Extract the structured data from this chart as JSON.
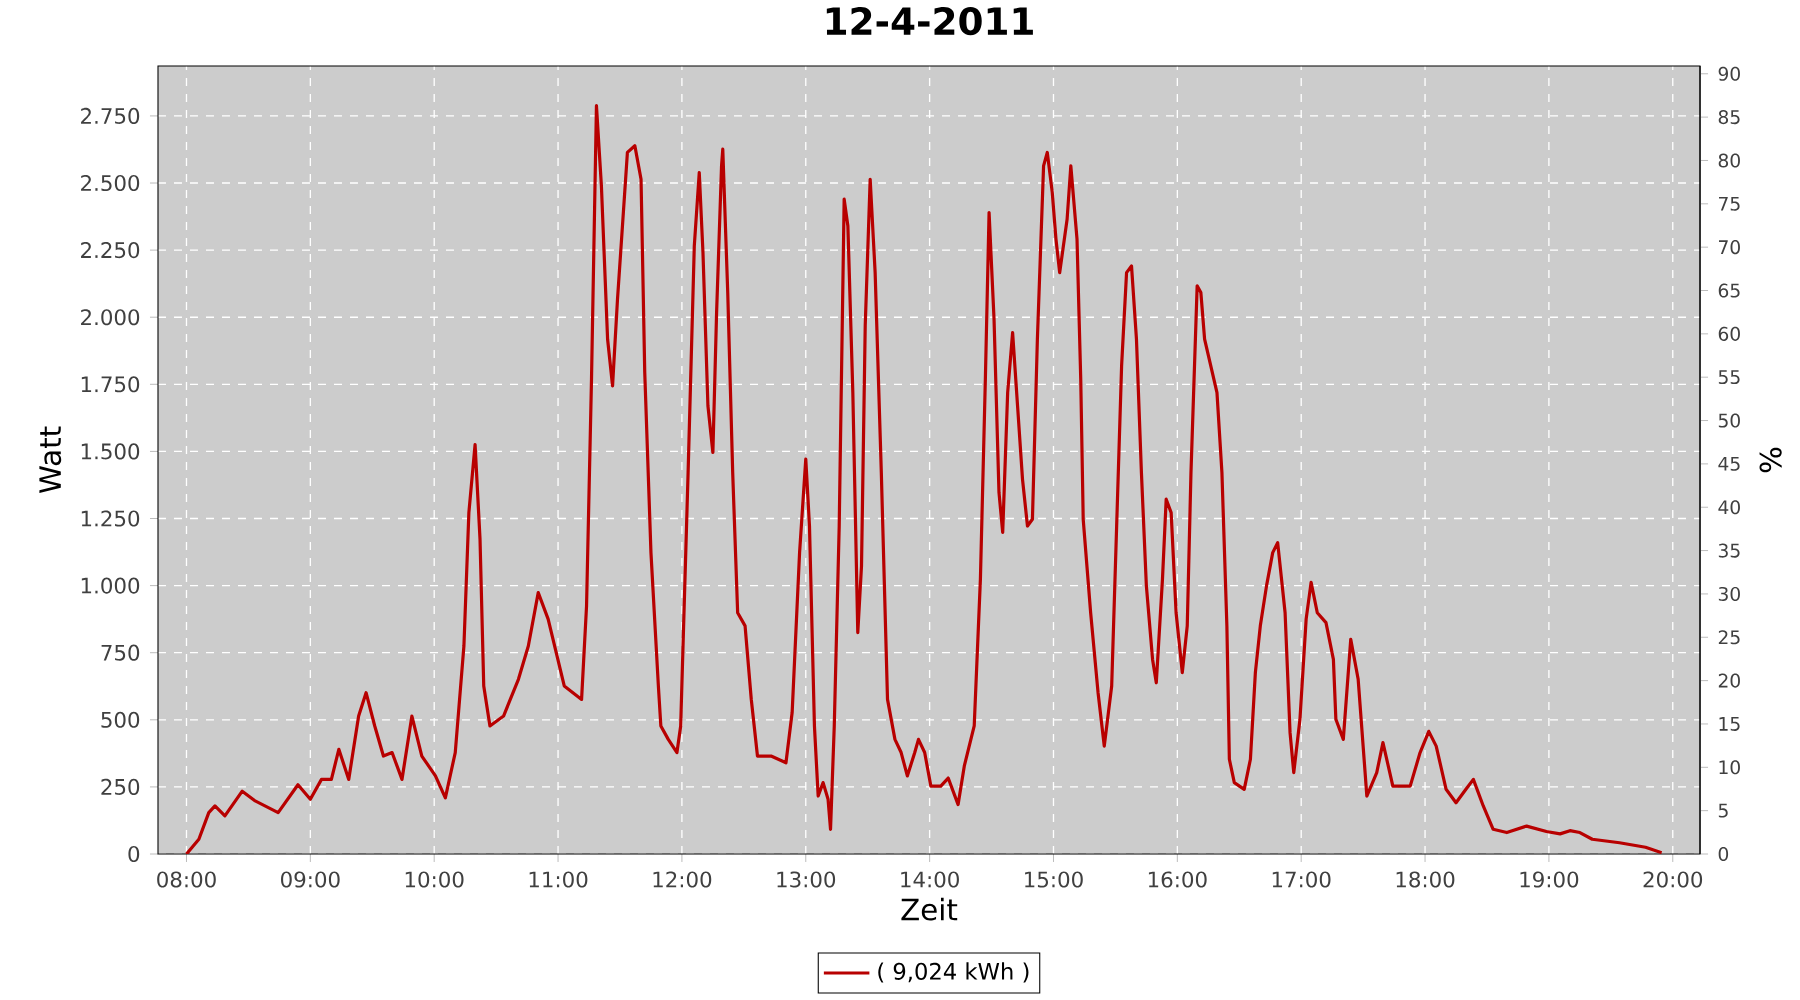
{
  "chart_data": {
    "type": "line",
    "title": "12-4-2011",
    "xlabel": "Zeit",
    "ylabel": "Watt",
    "y2label": "%",
    "xlim": [
      7.77,
      20.22
    ],
    "ylim": [
      0,
      2936
    ],
    "y2lim": [
      0,
      90.9
    ],
    "xticks": [
      {
        "value": 8,
        "label": "08:00"
      },
      {
        "value": 9,
        "label": "09:00"
      },
      {
        "value": 10,
        "label": "10:00"
      },
      {
        "value": 11,
        "label": "11:00"
      },
      {
        "value": 12,
        "label": "12:00"
      },
      {
        "value": 13,
        "label": "13:00"
      },
      {
        "value": 14,
        "label": "14:00"
      },
      {
        "value": 15,
        "label": "15:00"
      },
      {
        "value": 16,
        "label": "16:00"
      },
      {
        "value": 17,
        "label": "17:00"
      },
      {
        "value": 18,
        "label": "18:00"
      },
      {
        "value": 19,
        "label": "19:00"
      },
      {
        "value": 20,
        "label": "20:00"
      }
    ],
    "yticks": [
      0,
      250,
      500,
      750,
      {
        "value": 1000,
        "label": "1.000"
      },
      {
        "value": 1250,
        "label": "1.250"
      },
      {
        "value": 1500,
        "label": "1.500"
      },
      {
        "value": 1750,
        "label": "1.750"
      },
      {
        "value": 2000,
        "label": "2.000"
      },
      {
        "value": 2250,
        "label": "2.250"
      },
      {
        "value": 2500,
        "label": "2.500"
      },
      {
        "value": 2750,
        "label": "2.750"
      }
    ],
    "y2ticks": [
      0,
      5,
      10,
      15,
      20,
      25,
      30,
      35,
      40,
      45,
      50,
      55,
      60,
      65,
      70,
      75,
      80,
      85,
      90
    ],
    "grid": true,
    "legend": "bottom",
    "x": [
      8.0,
      8.1,
      8.18,
      8.23,
      8.31,
      8.45,
      8.55,
      8.74,
      8.9,
      9.0,
      9.09,
      9.17,
      9.23,
      9.31,
      9.39,
      9.45,
      9.52,
      9.59,
      9.66,
      9.74,
      9.82,
      9.9,
      10.01,
      10.09,
      10.17,
      10.24,
      10.28,
      10.33,
      10.37,
      10.4,
      10.45,
      10.56,
      10.68,
      10.76,
      10.84,
      10.92,
      11.05,
      11.19,
      11.23,
      11.27,
      11.31,
      11.35,
      11.4,
      11.44,
      11.48,
      11.56,
      11.62,
      11.67,
      11.7,
      11.75,
      11.81,
      11.83,
      11.89,
      11.96,
      11.99,
      12.05,
      12.1,
      12.14,
      12.17,
      12.21,
      12.25,
      12.28,
      12.32,
      12.33,
      12.37,
      12.41,
      12.45,
      12.51,
      12.56,
      12.61,
      12.72,
      12.84,
      12.89,
      12.95,
      13.0,
      13.03,
      13.07,
      13.1,
      13.14,
      13.18,
      13.2,
      13.23,
      13.27,
      13.31,
      13.34,
      13.38,
      13.42,
      13.45,
      13.48,
      13.52,
      13.56,
      13.61,
      13.66,
      13.72,
      13.77,
      13.82,
      13.88,
      13.91,
      13.96,
      14.01,
      14.09,
      14.15,
      14.23,
      14.28,
      14.36,
      14.41,
      14.45,
      14.48,
      14.52,
      14.56,
      14.59,
      14.63,
      14.67,
      14.71,
      14.75,
      14.79,
      14.83,
      14.87,
      14.92,
      14.95,
      14.99,
      15.02,
      15.05,
      15.11,
      15.14,
      15.19,
      15.22,
      15.24,
      15.3,
      15.36,
      15.41,
      15.47,
      15.51,
      15.55,
      15.59,
      15.63,
      15.67,
      15.71,
      15.75,
      15.8,
      15.83,
      15.88,
      15.91,
      15.95,
      15.99,
      16.04,
      16.08,
      16.11,
      16.16,
      16.19,
      16.22,
      16.27,
      16.32,
      16.36,
      16.4,
      16.42,
      16.46,
      16.54,
      16.59,
      16.63,
      16.67,
      16.72,
      16.77,
      16.81,
      16.87,
      16.91,
      16.94,
      16.99,
      17.04,
      17.08,
      17.13,
      17.2,
      17.26,
      17.28,
      17.34,
      17.4,
      17.46,
      17.53,
      17.61,
      17.66,
      17.74,
      17.88,
      17.96,
      18.03,
      18.09,
      18.17,
      18.25,
      18.33,
      18.39,
      18.47,
      18.55,
      18.66,
      18.82,
      18.98,
      19.09,
      19.17,
      19.25,
      19.35,
      19.57,
      19.78,
      19.91
    ],
    "series": [
      {
        "name": "( 9,024 kWh )",
        "color": "#b80000",
        "values": [
          0,
          55,
          154,
          179,
          142,
          234,
          199,
          154,
          258,
          204,
          278,
          278,
          390,
          278,
          514,
          601,
          477,
          365,
          378,
          278,
          514,
          365,
          291,
          209,
          378,
          775,
          1272,
          1525,
          1173,
          626,
          477,
          514,
          651,
          775,
          974,
          875,
          626,
          576,
          924,
          1769,
          2788,
          2489,
          1918,
          1744,
          2067,
          2614,
          2639,
          2514,
          1794,
          1123,
          626,
          477,
          427,
          378,
          477,
          1421,
          2266,
          2539,
          2241,
          1670,
          1496,
          2017,
          2564,
          2626,
          2092,
          1421,
          899,
          850,
          576,
          365,
          365,
          340,
          527,
          1123,
          1471,
          1222,
          477,
          216,
          266,
          204,
          92,
          477,
          1222,
          2440,
          2340,
          1719,
          825,
          1073,
          1968,
          2514,
          2167,
          1421,
          576,
          427,
          378,
          291,
          378,
          427,
          378,
          253,
          253,
          283,
          184,
          328,
          477,
          1024,
          1769,
          2390,
          1993,
          1347,
          1198,
          1719,
          1943,
          1670,
          1396,
          1222,
          1247,
          1918,
          2564,
          2614,
          2465,
          2291,
          2166,
          2365,
          2564,
          2291,
          1769,
          1247,
          899,
          601,
          402,
          626,
          1222,
          1819,
          2166,
          2191,
          1918,
          1421,
          999,
          725,
          638,
          1024,
          1322,
          1272,
          899,
          676,
          850,
          1421,
          2117,
          2092,
          1918,
          1819,
          1719,
          1421,
          850,
          353,
          266,
          241,
          353,
          676,
          850,
          999,
          1123,
          1160,
          899,
          452,
          303,
          502,
          875,
          1012,
          899,
          862,
          725,
          502,
          427,
          800,
          651,
          216,
          303,
          415,
          253,
          253,
          378,
          457,
          402,
          241,
          191,
          241,
          278,
          179,
          92,
          80,
          104,
          84,
          75,
          87,
          80,
          55,
          42,
          25,
          5
        ]
      }
    ]
  }
}
